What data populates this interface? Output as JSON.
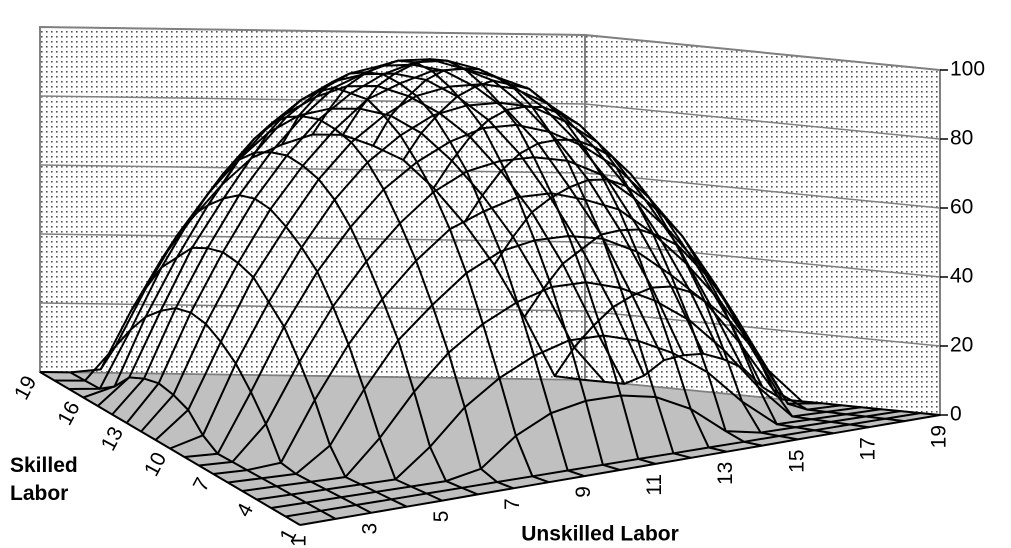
{
  "chart_data": {
    "type": "surface",
    "x_label": "Unskilled Labor",
    "y_label": "Skilled Labor",
    "x": [
      1,
      null,
      3,
      null,
      5,
      null,
      7,
      null,
      9,
      null,
      11,
      null,
      13,
      null,
      15,
      null,
      17,
      null,
      19
    ],
    "y": [
      1,
      null,
      null,
      4,
      null,
      null,
      7,
      null,
      null,
      10,
      null,
      null,
      13,
      null,
      null,
      16,
      null,
      null,
      19
    ],
    "values": [
      [
        0,
        0,
        0,
        0,
        0,
        0,
        0,
        0,
        0,
        0,
        0,
        0,
        0,
        0,
        0,
        0,
        0,
        0,
        0
      ],
      [
        0,
        0,
        0,
        0,
        0,
        0,
        0,
        0,
        0,
        0,
        0,
        0,
        0,
        0,
        0,
        0,
        0,
        0,
        0
      ],
      [
        0,
        0,
        0,
        0,
        0,
        0,
        2,
        10,
        15,
        17,
        17,
        15,
        10,
        2,
        0,
        0,
        0,
        0,
        0
      ],
      [
        0,
        0,
        0,
        0,
        0,
        8,
        18,
        25,
        30,
        33,
        33,
        30,
        25,
        18,
        8,
        0,
        0,
        0,
        0
      ],
      [
        0,
        0,
        0,
        0,
        10,
        22,
        32,
        39,
        44,
        47,
        47,
        44,
        39,
        32,
        22,
        10,
        0,
        0,
        0
      ],
      [
        0,
        0,
        0,
        7,
        22,
        35,
        44,
        52,
        57,
        59,
        59,
        57,
        52,
        44,
        35,
        22,
        7,
        0,
        0
      ],
      [
        0,
        0,
        1,
        18,
        33,
        45,
        55,
        63,
        67,
        70,
        70,
        67,
        63,
        55,
        45,
        33,
        18,
        1,
        0
      ],
      [
        0,
        0,
        10,
        27,
        42,
        54,
        64,
        72,
        77,
        79,
        79,
        77,
        72,
        64,
        54,
        42,
        27,
        10,
        0
      ],
      [
        0,
        0,
        17,
        35,
        50,
        62,
        72,
        79,
        84,
        87,
        87,
        84,
        79,
        72,
        62,
        50,
        35,
        17,
        0
      ],
      [
        0,
        3,
        23,
        40,
        55,
        68,
        78,
        85,
        90,
        92,
        92,
        90,
        85,
        78,
        68,
        55,
        40,
        23,
        3
      ],
      [
        0,
        8,
        27,
        45,
        59,
        72,
        82,
        89,
        94,
        96,
        96,
        94,
        89,
        82,
        72,
        59,
        45,
        27,
        8
      ],
      [
        0,
        10,
        30,
        47,
        62,
        74,
        84,
        92,
        96,
        99,
        99,
        96,
        92,
        84,
        74,
        62,
        47,
        30,
        10
      ],
      [
        0,
        11,
        31,
        48,
        63,
        75,
        85,
        92,
        97,
        100,
        100,
        97,
        92,
        85,
        75,
        63,
        48,
        31,
        11
      ],
      [
        0,
        10,
        30,
        47,
        62,
        74,
        84,
        92,
        96,
        99,
        99,
        96,
        92,
        84,
        74,
        62,
        47,
        30,
        10
      ],
      [
        0,
        8,
        27,
        45,
        59,
        72,
        82,
        89,
        94,
        96,
        96,
        94,
        89,
        82,
        72,
        59,
        45,
        27,
        8
      ],
      [
        0,
        3,
        23,
        40,
        55,
        68,
        78,
        85,
        90,
        92,
        92,
        90,
        85,
        78,
        68,
        55,
        40,
        23,
        3
      ],
      [
        0,
        0,
        17,
        35,
        50,
        62,
        72,
        79,
        84,
        87,
        87,
        84,
        79,
        72,
        62,
        50,
        35,
        17,
        0
      ],
      [
        0,
        0,
        10,
        27,
        42,
        54,
        64,
        72,
        77,
        79,
        79,
        77,
        72,
        64,
        54,
        42,
        27,
        10,
        0
      ],
      [
        0,
        0,
        1,
        18,
        33,
        45,
        55,
        63,
        67,
        70,
        70,
        67,
        63,
        55,
        45,
        33,
        18,
        1,
        0
      ]
    ],
    "color": "#000000",
    "floor_color": "#c0c0c0",
    "zlim": [
      0,
      100
    ],
    "zticks": [
      0,
      20,
      40,
      60,
      80,
      100
    ],
    "grid": true
  }
}
